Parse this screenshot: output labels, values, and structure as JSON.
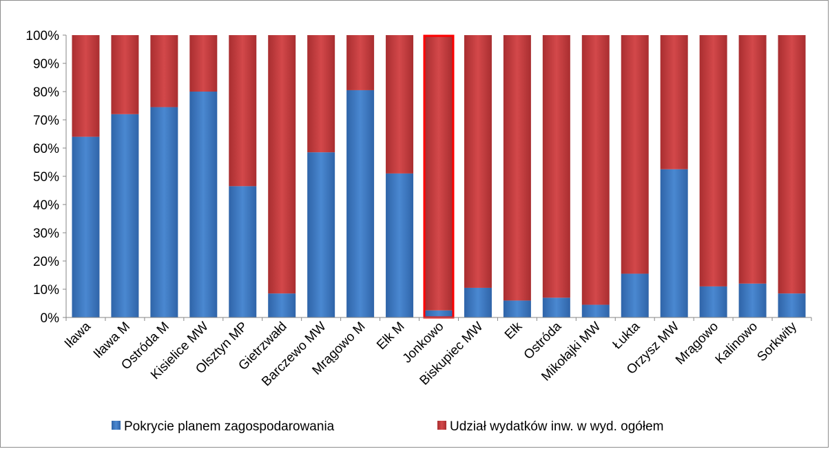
{
  "chart_data": {
    "type": "bar",
    "stacked": "percent",
    "categories": [
      "Iława",
      "Iława M",
      "Ostróda M",
      "Kisielice MW",
      "Olsztyn MP",
      "Gietrzwałd",
      "Barczewo MW",
      "Mrągowo M",
      "Ełk M",
      "Jonkowo",
      "Biskupiec MW",
      "Ełk",
      "Ostróda",
      "Mikołajki MW",
      "Łukta",
      "Orzysz MW",
      "Mrągowo",
      "Kalinowo",
      "Sorkwity"
    ],
    "series": [
      {
        "name": "Pokrycie planem zagospodarowania",
        "color": "#3d78c2",
        "values": [
          64,
          72,
          74.5,
          80,
          46.5,
          8.5,
          58.5,
          80.5,
          51,
          2.5,
          10.5,
          6,
          7,
          4.5,
          15.5,
          52.5,
          11,
          12,
          8.5
        ]
      },
      {
        "name": "Udział wydatków inw. w wyd. ogółem",
        "color": "#c0383a",
        "values": [
          36,
          28,
          25.5,
          20,
          53.5,
          91.5,
          41.5,
          19.5,
          49,
          97.5,
          89.5,
          94,
          93,
          95.5,
          84.5,
          47.5,
          89,
          88,
          91.5
        ]
      }
    ],
    "highlight_category": "Jonkowo",
    "highlight_color": "#ff0000",
    "y_ticks": [
      "0%",
      "10%",
      "20%",
      "30%",
      "40%",
      "50%",
      "60%",
      "70%",
      "80%",
      "90%",
      "100%"
    ],
    "ylim": [
      0,
      100
    ],
    "grid": false,
    "legend_position": "bottom"
  }
}
